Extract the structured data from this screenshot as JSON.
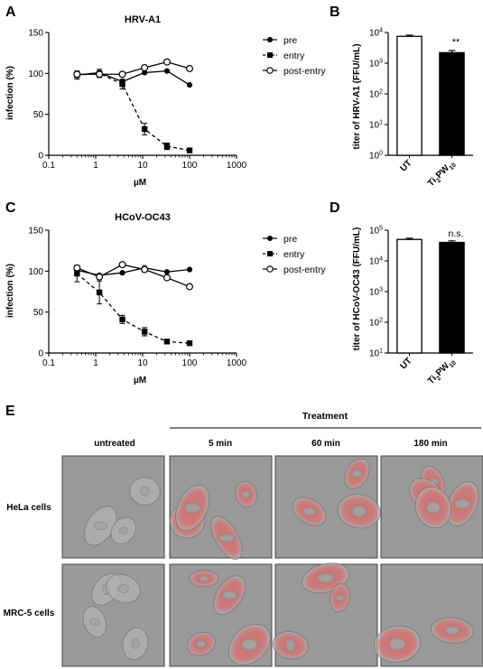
{
  "panel_letters": [
    "A",
    "B",
    "C",
    "D",
    "E"
  ],
  "legend_entries": [
    "pre",
    "entry",
    "post-entry"
  ],
  "significance": {
    "B": "**",
    "D": "n.s."
  },
  "colors": {
    "ink": "#000000",
    "cell_tint": "#e8504f",
    "phase_bg": "#9a9a9a"
  },
  "chart_data": [
    {
      "panel": "A",
      "type": "line",
      "title": "HRV-A1",
      "xlabel": "µM",
      "ylabel": "infection (%)",
      "xscale": "log",
      "xlim": [
        0.1,
        1000
      ],
      "xticks": [
        "0.1",
        "1",
        "10",
        "100",
        "1000"
      ],
      "ylim": [
        0,
        150
      ],
      "yticks": [
        "0",
        "50",
        "100",
        "150"
      ],
      "legend": "top-right",
      "grid": false,
      "x": [
        0.4,
        1.2,
        3.7,
        11,
        33,
        100
      ],
      "series": [
        {
          "name": "pre",
          "marker": "filled-circle",
          "line": "solid",
          "values": [
            98,
            101,
            90,
            101,
            103,
            86
          ]
        },
        {
          "name": "entry",
          "marker": "filled-square",
          "line": "dashed",
          "values": [
            98,
            100,
            87,
            32,
            11,
            6
          ],
          "errors": [
            5,
            5,
            6,
            7,
            4,
            2
          ]
        },
        {
          "name": "post-entry",
          "marker": "open-circle",
          "line": "solid",
          "values": [
            99,
            99,
            99,
            107,
            114,
            106
          ]
        }
      ]
    },
    {
      "panel": "B",
      "type": "bar",
      "ylabel": "titer of HRV-A1 (FFU/mL)",
      "yscale": "log",
      "ylim": [
        1,
        10000
      ],
      "yticks": [
        "10^0",
        "10^1",
        "10^2",
        "10^3",
        "10^4"
      ],
      "categories": [
        "UT",
        "Ti2PW10"
      ],
      "values": [
        7500,
        2200
      ],
      "errors": [
        700,
        400
      ],
      "fills": [
        "#ffffff",
        "#000000"
      ]
    },
    {
      "panel": "C",
      "type": "line",
      "title": "HCoV-OC43",
      "xlabel": "µM",
      "ylabel": "infection (%)",
      "xscale": "log",
      "xlim": [
        0.1,
        1000
      ],
      "xticks": [
        "0.1",
        "1",
        "10",
        "100",
        "1000"
      ],
      "ylim": [
        0,
        150
      ],
      "yticks": [
        "0",
        "50",
        "100",
        "150"
      ],
      "legend": "top-right",
      "grid": false,
      "x": [
        0.4,
        1.2,
        3.7,
        11,
        33,
        100
      ],
      "series": [
        {
          "name": "pre",
          "marker": "filled-circle",
          "line": "solid",
          "values": [
            101,
            95,
            98,
            104,
            99,
            102
          ]
        },
        {
          "name": "entry",
          "marker": "filled-square",
          "line": "dashed",
          "values": [
            97,
            74,
            41,
            26,
            14,
            12
          ],
          "errors": [
            10,
            14,
            5,
            5,
            2,
            2
          ]
        },
        {
          "name": "post-entry",
          "marker": "open-circle",
          "line": "solid",
          "values": [
            104,
            93,
            108,
            102,
            92,
            81
          ]
        }
      ]
    },
    {
      "panel": "D",
      "type": "bar",
      "ylabel": "titer of HCoV-OC43 (FFU/mL)",
      "yscale": "log",
      "ylim": [
        10,
        100000
      ],
      "yticks": [
        "10^1",
        "10^2",
        "10^3",
        "10^4",
        "10^5"
      ],
      "categories": [
        "UT",
        "Ti2PW10"
      ],
      "values": [
        50000,
        40000
      ],
      "errors": [
        5000,
        5000
      ],
      "fills": [
        "#ffffff",
        "#000000"
      ]
    }
  ],
  "panel_E": {
    "treatment_label": "Treatment",
    "column_labels": [
      "untreated",
      "5 min",
      "60 min",
      "180 min"
    ],
    "row_labels": [
      "HeLa cells",
      "MRC-5 cells"
    ],
    "images": [
      {
        "row": "HeLa cells",
        "column": "untreated",
        "fluorescence": false
      },
      {
        "row": "HeLa cells",
        "column": "5 min",
        "fluorescence": true
      },
      {
        "row": "HeLa cells",
        "column": "60 min",
        "fluorescence": true
      },
      {
        "row": "HeLa cells",
        "column": "180 min",
        "fluorescence": true
      },
      {
        "row": "MRC-5 cells",
        "column": "untreated",
        "fluorescence": false
      },
      {
        "row": "MRC-5 cells",
        "column": "5 min",
        "fluorescence": true
      },
      {
        "row": "MRC-5 cells",
        "column": "60 min",
        "fluorescence": true
      },
      {
        "row": "MRC-5 cells",
        "column": "180 min",
        "fluorescence": true
      }
    ]
  }
}
